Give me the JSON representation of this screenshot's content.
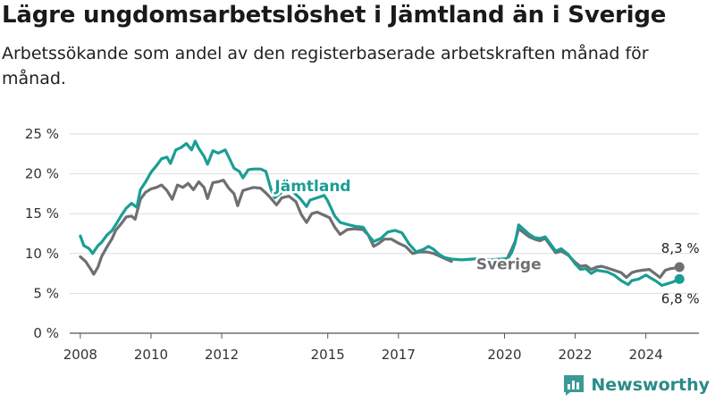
{
  "title": "Lägre ungdomsarbetslöshet i Jämtland än i Sverige",
  "subtitle": "Arbetssökande som andel av den registerbaserade arbetskraften månad för månad.",
  "brand": {
    "name": "Newsworthy",
    "icon": "bar-chart-logo-icon",
    "color": "#3a9a95"
  },
  "chart_data": {
    "type": "line",
    "title": "Lägre ungdomsarbetslöshet i Jämtland än i Sverige",
    "xlabel": "",
    "ylabel": "",
    "xlim": [
      2007.7,
      2025.5
    ],
    "ylim": [
      0,
      25
    ],
    "grid": true,
    "legend": "inline labels",
    "y_ticks": [
      0,
      5,
      10,
      15,
      20,
      25
    ],
    "y_tick_labels": [
      "0 %",
      "5 %",
      "10 %",
      "15 %",
      "20 %",
      "25 %"
    ],
    "x_ticks": [
      2008,
      2010,
      2012,
      2015,
      2017,
      2020,
      2022,
      2024
    ],
    "x_tick_labels": [
      "2008",
      "2010",
      "2012",
      "2015",
      "2017",
      "2020",
      "2022",
      "2024"
    ],
    "series": [
      {
        "name": "Jämtland",
        "color": "#1a9e94",
        "points": [
          [
            2008.0,
            12.2
          ],
          [
            2008.1,
            11.0
          ],
          [
            2008.25,
            10.6
          ],
          [
            2008.35,
            10.0
          ],
          [
            2008.5,
            11.0
          ],
          [
            2008.6,
            11.4
          ],
          [
            2008.75,
            12.3
          ],
          [
            2008.9,
            12.9
          ],
          [
            2009.0,
            13.6
          ],
          [
            2009.15,
            14.7
          ],
          [
            2009.3,
            15.7
          ],
          [
            2009.45,
            16.3
          ],
          [
            2009.6,
            15.8
          ],
          [
            2009.7,
            18.0
          ],
          [
            2009.85,
            19.0
          ],
          [
            2010.0,
            20.2
          ],
          [
            2010.15,
            21.0
          ],
          [
            2010.3,
            21.9
          ],
          [
            2010.45,
            22.1
          ],
          [
            2010.55,
            21.3
          ],
          [
            2010.7,
            23.0
          ],
          [
            2010.85,
            23.3
          ],
          [
            2011.0,
            23.8
          ],
          [
            2011.15,
            23.0
          ],
          [
            2011.25,
            24.1
          ],
          [
            2011.35,
            23.2
          ],
          [
            2011.5,
            22.2
          ],
          [
            2011.6,
            21.2
          ],
          [
            2011.75,
            22.9
          ],
          [
            2011.9,
            22.6
          ],
          [
            2012.1,
            23.0
          ],
          [
            2012.2,
            22.1
          ],
          [
            2012.35,
            20.7
          ],
          [
            2012.5,
            20.3
          ],
          [
            2012.6,
            19.5
          ],
          [
            2012.75,
            20.5
          ],
          [
            2012.9,
            20.6
          ],
          [
            2013.1,
            20.6
          ],
          [
            2013.25,
            20.3
          ],
          [
            2013.4,
            18.0
          ],
          [
            2013.5,
            17.0
          ],
          [
            2013.65,
            17.5
          ],
          [
            2013.8,
            18.0
          ],
          [
            2014.0,
            17.8
          ],
          [
            2014.2,
            17.0
          ],
          [
            2014.4,
            15.9
          ],
          [
            2014.5,
            16.7
          ],
          [
            2014.7,
            17.0
          ],
          [
            2014.9,
            17.3
          ],
          [
            2015.0,
            16.6
          ],
          [
            2015.2,
            14.7
          ],
          [
            2015.35,
            13.9
          ],
          [
            2015.6,
            13.6
          ],
          [
            2015.8,
            13.4
          ],
          [
            2016.0,
            13.3
          ],
          [
            2016.15,
            12.3
          ],
          [
            2016.3,
            11.5
          ],
          [
            2016.5,
            11.9
          ],
          [
            2016.7,
            12.7
          ],
          [
            2016.9,
            12.9
          ],
          [
            2017.1,
            12.6
          ],
          [
            2017.3,
            11.2
          ],
          [
            2017.5,
            10.2
          ],
          [
            2017.7,
            10.5
          ],
          [
            2017.85,
            10.9
          ],
          [
            2018.0,
            10.5
          ],
          [
            2018.15,
            9.9
          ],
          [
            2018.3,
            9.5
          ],
          [
            2018.5,
            9.3
          ],
          [
            2018.8,
            9.2
          ],
          [
            2019.1,
            9.3
          ],
          [
            2019.4,
            9.4
          ],
          [
            2019.6,
            9.2
          ],
          [
            2019.9,
            9.3
          ],
          [
            2020.1,
            9.4
          ],
          [
            2020.2,
            10.1
          ],
          [
            2020.3,
            11.3
          ],
          [
            2020.4,
            13.6
          ],
          [
            2020.55,
            13.0
          ],
          [
            2020.7,
            12.4
          ],
          [
            2020.85,
            12.0
          ],
          [
            2021.0,
            11.9
          ],
          [
            2021.15,
            12.1
          ],
          [
            2021.3,
            11.2
          ],
          [
            2021.45,
            10.3
          ],
          [
            2021.6,
            10.6
          ],
          [
            2021.8,
            9.9
          ],
          [
            2022.0,
            8.7
          ],
          [
            2022.15,
            8.0
          ],
          [
            2022.3,
            8.1
          ],
          [
            2022.45,
            7.5
          ],
          [
            2022.6,
            7.9
          ],
          [
            2022.75,
            7.8
          ],
          [
            2022.9,
            7.7
          ],
          [
            2023.1,
            7.3
          ],
          [
            2023.3,
            6.6
          ],
          [
            2023.5,
            6.1
          ],
          [
            2023.6,
            6.6
          ],
          [
            2023.8,
            6.8
          ],
          [
            2024.0,
            7.3
          ],
          [
            2024.15,
            6.9
          ],
          [
            2024.3,
            6.5
          ],
          [
            2024.45,
            6.0
          ],
          [
            2024.6,
            6.2
          ],
          [
            2024.75,
            6.4
          ],
          [
            2024.85,
            6.6
          ],
          [
            2024.95,
            6.8
          ]
        ]
      },
      {
        "name": "Sverige",
        "color": "#6f6f73",
        "points": [
          [
            2008.0,
            9.6
          ],
          [
            2008.15,
            9.0
          ],
          [
            2008.3,
            8.0
          ],
          [
            2008.38,
            7.4
          ],
          [
            2008.5,
            8.3
          ],
          [
            2008.6,
            9.6
          ],
          [
            2008.75,
            10.8
          ],
          [
            2008.9,
            11.9
          ],
          [
            2009.0,
            12.9
          ],
          [
            2009.15,
            13.7
          ],
          [
            2009.3,
            14.6
          ],
          [
            2009.45,
            14.7
          ],
          [
            2009.55,
            14.3
          ],
          [
            2009.7,
            16.8
          ],
          [
            2009.85,
            17.7
          ],
          [
            2010.0,
            18.1
          ],
          [
            2010.15,
            18.3
          ],
          [
            2010.3,
            18.6
          ],
          [
            2010.45,
            17.9
          ],
          [
            2010.6,
            16.8
          ],
          [
            2010.75,
            18.6
          ],
          [
            2010.9,
            18.3
          ],
          [
            2011.05,
            18.8
          ],
          [
            2011.2,
            18.0
          ],
          [
            2011.35,
            19.0
          ],
          [
            2011.5,
            18.3
          ],
          [
            2011.6,
            16.9
          ],
          [
            2011.75,
            18.9
          ],
          [
            2011.9,
            19.0
          ],
          [
            2012.05,
            19.2
          ],
          [
            2012.2,
            18.2
          ],
          [
            2012.35,
            17.5
          ],
          [
            2012.45,
            16.0
          ],
          [
            2012.6,
            17.9
          ],
          [
            2012.75,
            18.1
          ],
          [
            2012.9,
            18.3
          ],
          [
            2013.1,
            18.2
          ],
          [
            2013.25,
            17.6
          ],
          [
            2013.4,
            16.9
          ],
          [
            2013.55,
            16.1
          ],
          [
            2013.7,
            17.0
          ],
          [
            2013.9,
            17.2
          ],
          [
            2014.1,
            16.5
          ],
          [
            2014.25,
            14.9
          ],
          [
            2014.4,
            13.9
          ],
          [
            2014.55,
            15.0
          ],
          [
            2014.7,
            15.2
          ],
          [
            2014.9,
            14.8
          ],
          [
            2015.05,
            14.5
          ],
          [
            2015.2,
            13.3
          ],
          [
            2015.35,
            12.4
          ],
          [
            2015.55,
            13.0
          ],
          [
            2015.75,
            13.1
          ],
          [
            2016.0,
            13.0
          ],
          [
            2016.15,
            12.3
          ],
          [
            2016.3,
            10.9
          ],
          [
            2016.45,
            11.3
          ],
          [
            2016.6,
            11.8
          ],
          [
            2016.8,
            11.8
          ],
          [
            2017.0,
            11.3
          ],
          [
            2017.2,
            10.9
          ],
          [
            2017.4,
            10.0
          ],
          [
            2017.6,
            10.2
          ],
          [
            2017.8,
            10.2
          ],
          [
            2018.0,
            10.0
          ],
          [
            2018.3,
            9.4
          ],
          [
            2018.5,
            9.0
          ]
        ]
      },
      {
        "name": "Sverige",
        "color": "#6f6f73",
        "points": [
          [
            2020.1,
            9.6
          ],
          [
            2020.2,
            10.5
          ],
          [
            2020.3,
            11.5
          ],
          [
            2020.4,
            13.1
          ],
          [
            2020.55,
            12.6
          ],
          [
            2020.7,
            12.1
          ],
          [
            2020.85,
            11.8
          ],
          [
            2021.0,
            11.6
          ],
          [
            2021.15,
            11.9
          ],
          [
            2021.3,
            11.0
          ],
          [
            2021.45,
            10.1
          ],
          [
            2021.6,
            10.3
          ],
          [
            2021.8,
            9.8
          ],
          [
            2022.0,
            8.9
          ],
          [
            2022.15,
            8.4
          ],
          [
            2022.3,
            8.5
          ],
          [
            2022.45,
            8.0
          ],
          [
            2022.6,
            8.3
          ],
          [
            2022.75,
            8.4
          ],
          [
            2022.9,
            8.2
          ],
          [
            2023.1,
            7.9
          ],
          [
            2023.3,
            7.6
          ],
          [
            2023.45,
            7.0
          ],
          [
            2023.6,
            7.6
          ],
          [
            2023.75,
            7.8
          ],
          [
            2023.9,
            7.9
          ],
          [
            2024.1,
            8.0
          ],
          [
            2024.25,
            7.5
          ],
          [
            2024.4,
            7.0
          ],
          [
            2024.55,
            7.9
          ],
          [
            2024.7,
            8.1
          ],
          [
            2024.85,
            8.2
          ],
          [
            2024.95,
            8.3
          ]
        ]
      }
    ],
    "labels": [
      {
        "text": "Jämtland",
        "x": 2013.5,
        "y": 17.8,
        "series": "Jämtland"
      },
      {
        "text": "Sverige",
        "x": 2019.2,
        "y": 8.0,
        "series": "Sverige"
      }
    ],
    "end_labels": [
      {
        "text": "8,3 %",
        "x": 2024.95,
        "y": 8.3,
        "color": "#6f6f73"
      },
      {
        "text": "6,8 %",
        "x": 2024.95,
        "y": 6.8,
        "color": "#1a9e94"
      }
    ]
  }
}
